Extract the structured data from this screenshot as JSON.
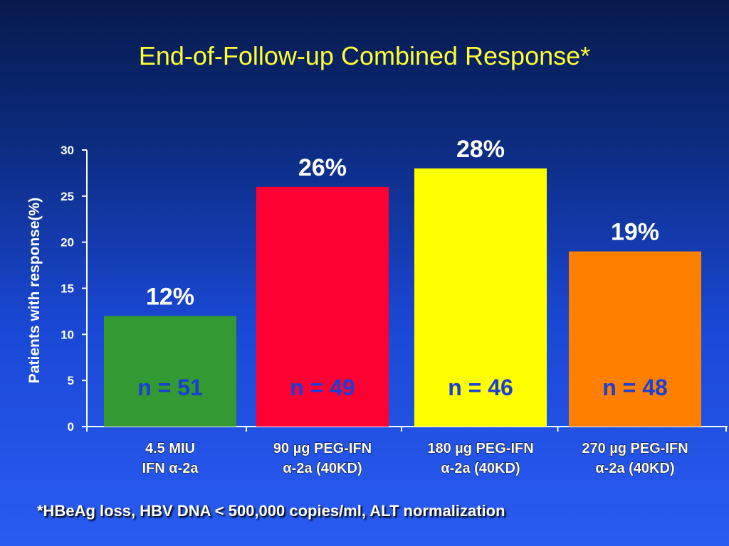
{
  "title": "End-of-Follow-up Combined Response*",
  "footnote": "*HBeAg loss, HBV DNA < 500,000 copies/ml, ALT normalization",
  "colors": {
    "title": "#ffff33",
    "axis": "#ffffff",
    "n_label": "#1a3fd6"
  },
  "chart_data": {
    "type": "bar",
    "ylabel": "Patients with response(%)",
    "ylim": [
      0,
      30
    ],
    "yticks": [
      0,
      5,
      10,
      15,
      20,
      25,
      30
    ],
    "grid": false,
    "categories": [
      {
        "line1": "4.5 MIU",
        "line2": "IFN α-2a"
      },
      {
        "line1": "90 µg PEG-IFN",
        "line2": "α-2a (40KD)"
      },
      {
        "line1": "180 µg PEG-IFN",
        "line2": "α-2a (40KD)"
      },
      {
        "line1": "270 µg PEG-IFN",
        "line2": "α-2a (40KD)"
      }
    ],
    "values": [
      12,
      26,
      28,
      19
    ],
    "value_labels": [
      "12%",
      "26%",
      "28%",
      "19%"
    ],
    "n_labels": [
      "n = 51",
      "n = 49",
      "n = 46",
      "n = 48"
    ],
    "bar_colors": [
      "#339933",
      "#ff0033",
      "#ffff00",
      "#ff7f00"
    ]
  }
}
